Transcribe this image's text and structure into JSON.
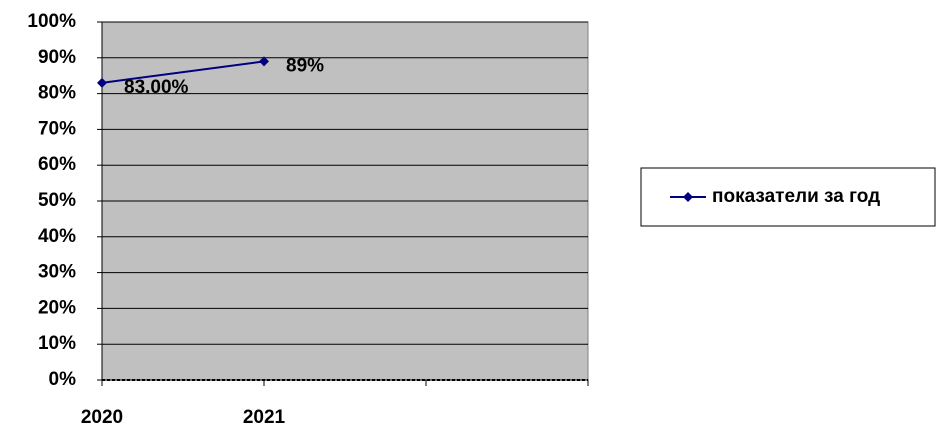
{
  "chart_data": {
    "type": "line",
    "categories": [
      "2020",
      "2021",
      null,
      null
    ],
    "series": [
      {
        "name": "показатели за год",
        "color": "#000080",
        "values": [
          83,
          89,
          null,
          null
        ],
        "value_labels": [
          "83.00%",
          "89%",
          null,
          null
        ]
      }
    ],
    "ylim": [
      0,
      100
    ],
    "yticks": [
      {
        "value": 0,
        "label": "0%"
      },
      {
        "value": 10,
        "label": "10%"
      },
      {
        "value": 20,
        "label": "20%"
      },
      {
        "value": 30,
        "label": "30%"
      },
      {
        "value": 40,
        "label": "40%"
      },
      {
        "value": 50,
        "label": "50%"
      },
      {
        "value": 60,
        "label": "60%"
      },
      {
        "value": 70,
        "label": "70%"
      },
      {
        "value": 80,
        "label": "80%"
      },
      {
        "value": 90,
        "label": "90%"
      },
      {
        "value": 100,
        "label": "100%"
      }
    ],
    "grid": true,
    "plot_background": "#c0c0c0",
    "legend": "right"
  }
}
